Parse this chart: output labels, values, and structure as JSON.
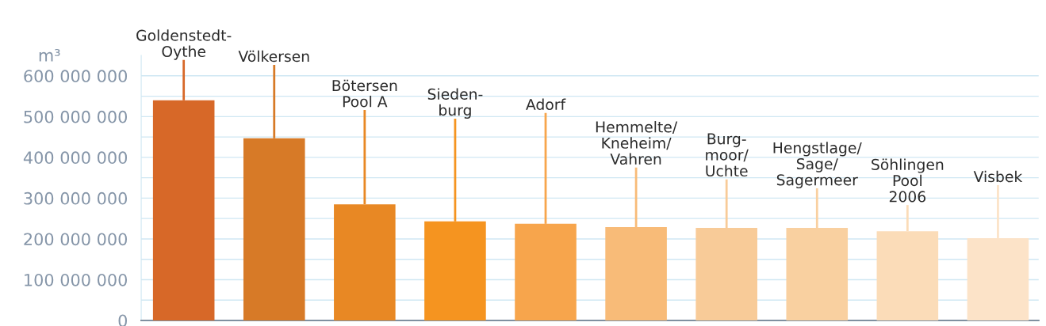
{
  "chart_data": {
    "type": "bar",
    "ylabel": "m³",
    "categories": [
      "Goldenstedt-\nOythe",
      "Völkersen",
      "Bötersen\nPool A",
      "Sieden-\nburg",
      "Adorf",
      "Hemmelte/\nKneheim/\nVahren",
      "Burg-\nmoor/\nUchte",
      "Hengstlage/\nSage/\nSagermeer",
      "Söhlingen\nPool\n2006",
      "Visbek"
    ],
    "values": [
      540000000,
      447000000,
      285000000,
      243000000,
      237000000,
      229000000,
      227000000,
      227000000,
      219000000,
      202000000
    ],
    "errors": [
      [
        540000000,
        639000000
      ],
      [
        447000000,
        627000000
      ],
      [
        285000000,
        516000000
      ],
      [
        243000000,
        495000000
      ],
      [
        237000000,
        509000000
      ],
      [
        229000000,
        375000000
      ],
      [
        227000000,
        346000000
      ],
      [
        227000000,
        324000000
      ],
      [
        219000000,
        283000000
      ],
      [
        202000000,
        332000000
      ]
    ],
    "colors": [
      "#d76828",
      "#d77a27",
      "#e88824",
      "#f59420",
      "#f7a54c",
      "#f8bb78",
      "#f8cb98",
      "#f9d0a0",
      "#fbdcb8",
      "#fce3c8"
    ],
    "ylim": [
      0,
      650000000
    ],
    "yticks": [
      0,
      {
        "value": 50000000,
        "label": null
      },
      {
        "value": 100000000,
        "label": "100 000 000"
      },
      {
        "value": 150000000,
        "label": null
      },
      {
        "value": 200000000,
        "label": "200 000 000"
      },
      {
        "value": 250000000,
        "label": null
      },
      {
        "value": 300000000,
        "label": "300 000 000"
      },
      {
        "value": 350000000,
        "label": null
      },
      {
        "value": 400000000,
        "label": "400 000 000"
      },
      {
        "value": 450000000,
        "label": null
      },
      {
        "value": 500000000,
        "label": "500 000 000"
      },
      {
        "value": 550000000,
        "label": null
      },
      {
        "value": 600000000,
        "label": "600 000 000"
      }
    ],
    "grid": "y",
    "tick_labels": "y"
  }
}
